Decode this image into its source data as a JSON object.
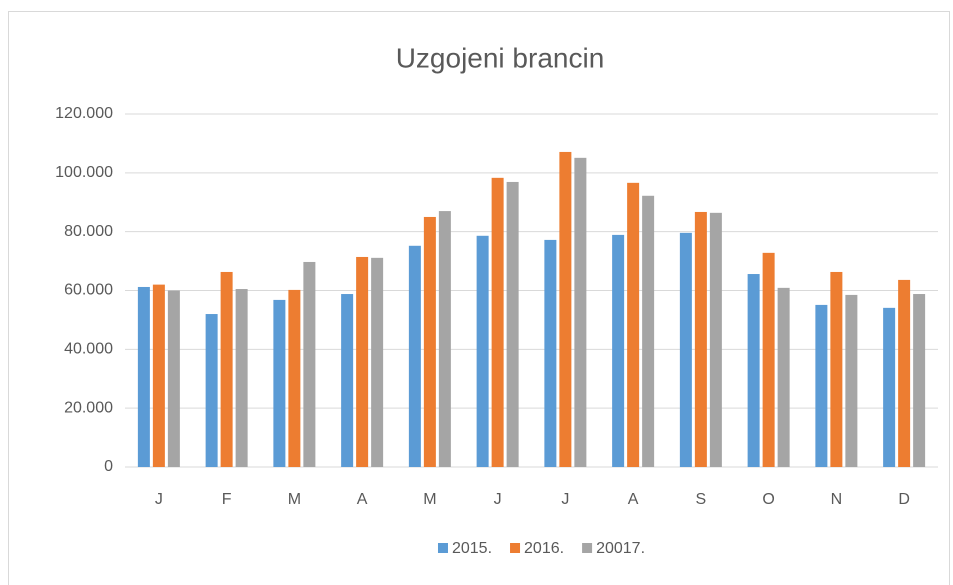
{
  "chart_data": {
    "type": "bar",
    "title": "Uzgojeni brancin",
    "categories": [
      "J",
      "F",
      "M",
      "A",
      "M",
      "J",
      "J",
      "A",
      "S",
      "O",
      "N",
      "D"
    ],
    "series": [
      {
        "name": "2015.",
        "color": "#5b9bd5",
        "values": [
          61200,
          52000,
          56800,
          58800,
          75200,
          78600,
          77200,
          78900,
          79600,
          65600,
          55100,
          54100
        ]
      },
      {
        "name": "2016.",
        "color": "#ed7d31",
        "values": [
          62000,
          66300,
          60200,
          71400,
          85000,
          98300,
          107100,
          96600,
          86700,
          72800,
          66300,
          63600
        ]
      },
      {
        "name": "20017.",
        "color": "#a5a5a5",
        "values": [
          60000,
          60500,
          69700,
          71100,
          87000,
          96900,
          105100,
          92200,
          86400,
          60900,
          58500,
          58800
        ]
      }
    ],
    "ylim": [
      0,
      120000
    ],
    "yticks": [
      0,
      {
        "value": 20000,
        "label": "20.000"
      },
      {
        "value": 40000,
        "label": "40.000"
      },
      {
        "value": 60000,
        "label": "60.000"
      },
      {
        "value": 80000,
        "label": "80.000"
      },
      {
        "value": 100000,
        "label": "100.000"
      },
      {
        "value": 120000,
        "label": "120.000"
      }
    ],
    "grid": true,
    "legend": "bottom"
  }
}
